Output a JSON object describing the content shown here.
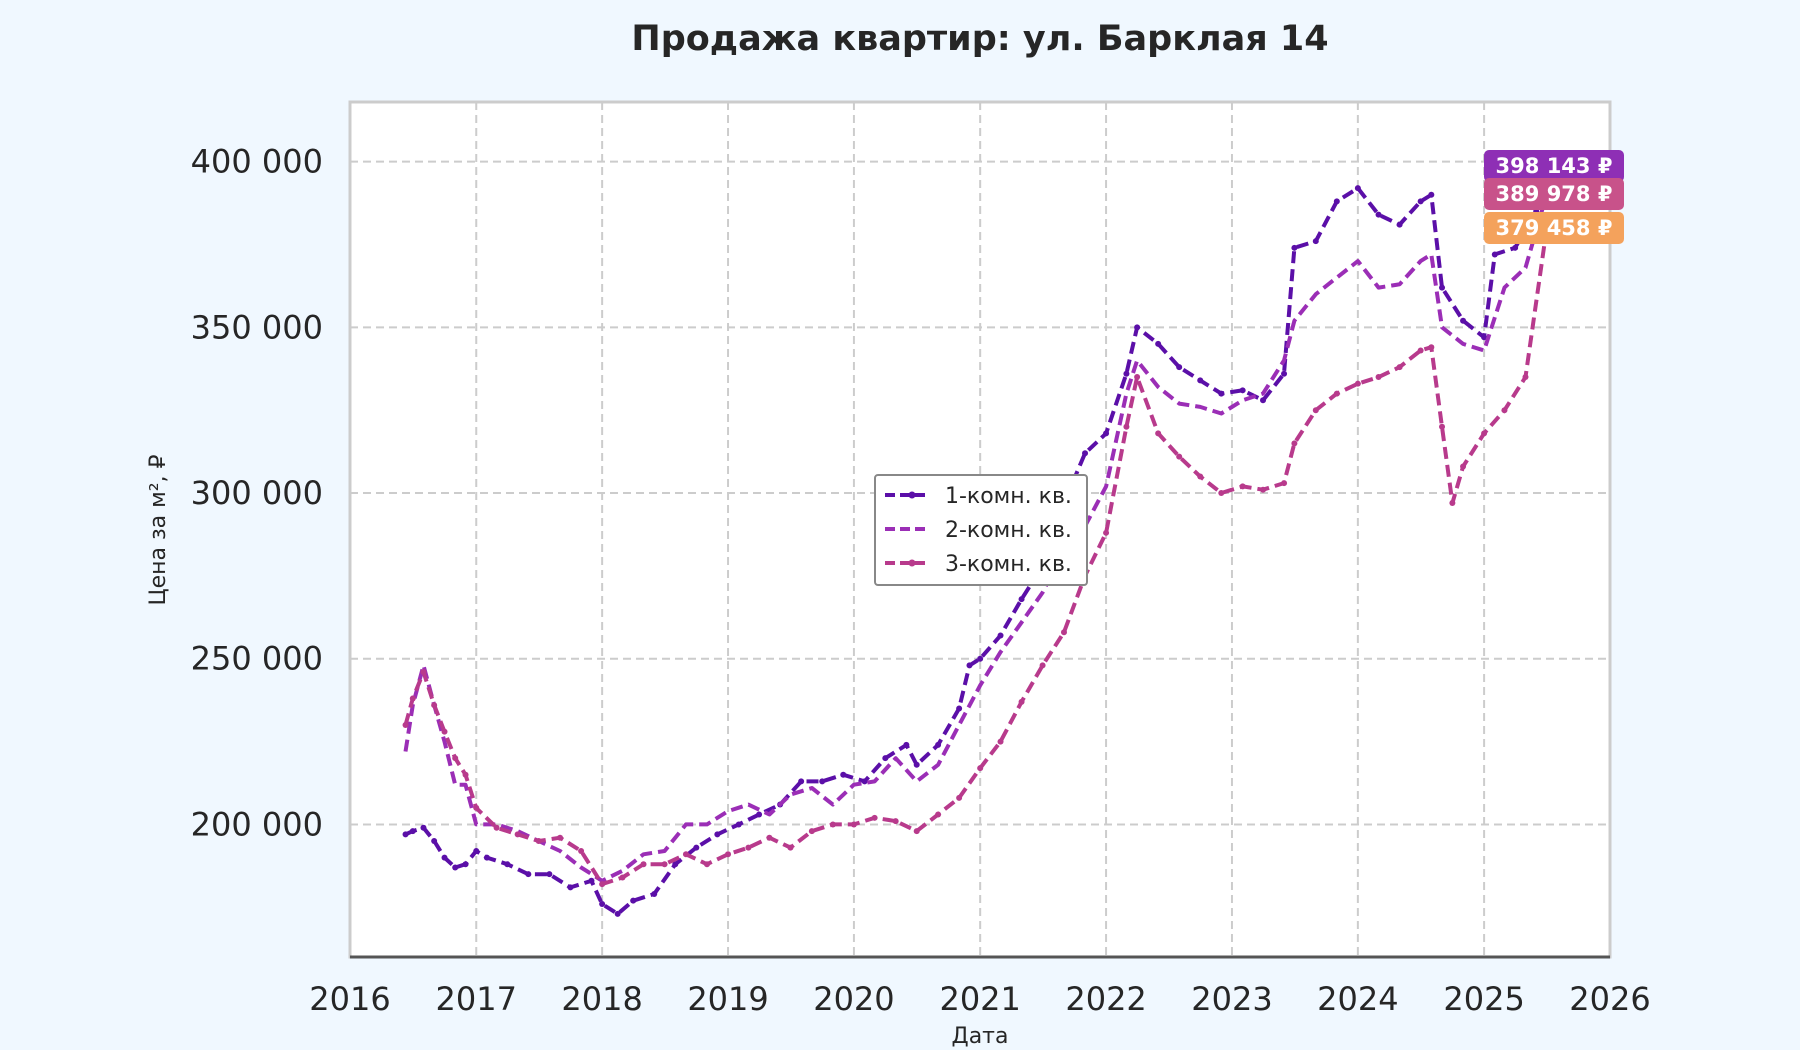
{
  "chart_data": {
    "type": "line",
    "title": "Продажа квартир: ул. Барклая 14",
    "xlabel": "Дата",
    "ylabel": "Цена за м², ₽",
    "x_range": [
      "2016-01-01",
      "2026-01-01"
    ],
    "ylim": [
      160000,
      418000
    ],
    "x_ticks": [
      "2016",
      "2017",
      "2018",
      "2019",
      "2020",
      "2021",
      "2022",
      "2023",
      "2024",
      "2025",
      "2026"
    ],
    "x_tick_dates": [
      "2016-01-01",
      "2017-01-01",
      "2018-01-01",
      "2019-01-01",
      "2020-01-01",
      "2021-01-01",
      "2022-01-01",
      "2023-01-01",
      "2024-01-01",
      "2025-01-01",
      "2026-01-01"
    ],
    "y_ticks": [
      200000,
      250000,
      300000,
      350000,
      400000
    ],
    "y_tick_labels": [
      "200 000",
      "250 000",
      "300 000",
      "350 000",
      "400 000"
    ],
    "grid": true,
    "legend_position": "center",
    "series": [
      {
        "name": "1-комн. кв.",
        "color": "#5b0fa8",
        "style": "dashed-dots",
        "points": [
          [
            "2016-06-10",
            197000
          ],
          [
            "2016-07-01",
            198000
          ],
          [
            "2016-08-01",
            199000
          ],
          [
            "2016-09-01",
            195000
          ],
          [
            "2016-10-01",
            190000
          ],
          [
            "2016-11-01",
            187000
          ],
          [
            "2016-12-01",
            188000
          ],
          [
            "2017-01-01",
            192000
          ],
          [
            "2017-02-01",
            190000
          ],
          [
            "2017-04-01",
            188000
          ],
          [
            "2017-06-01",
            185000
          ],
          [
            "2017-08-01",
            185000
          ],
          [
            "2017-10-01",
            181000
          ],
          [
            "2017-12-01",
            183000
          ],
          [
            "2018-01-01",
            176000
          ],
          [
            "2018-02-15",
            173000
          ],
          [
            "2018-04-01",
            177000
          ],
          [
            "2018-06-01",
            179000
          ],
          [
            "2018-08-01",
            188000
          ],
          [
            "2018-10-01",
            193000
          ],
          [
            "2018-12-01",
            197000
          ],
          [
            "2019-02-01",
            200000
          ],
          [
            "2019-04-01",
            203000
          ],
          [
            "2019-06-01",
            206000
          ],
          [
            "2019-08-01",
            213000
          ],
          [
            "2019-10-01",
            213000
          ],
          [
            "2019-12-01",
            215000
          ],
          [
            "2020-02-01",
            213000
          ],
          [
            "2020-04-01",
            220000
          ],
          [
            "2020-06-01",
            224000
          ],
          [
            "2020-07-01",
            218000
          ],
          [
            "2020-09-01",
            224000
          ],
          [
            "2020-11-01",
            235000
          ],
          [
            "2020-12-01",
            248000
          ],
          [
            "2021-01-01",
            250000
          ],
          [
            "2021-03-01",
            257000
          ],
          [
            "2021-05-01",
            268000
          ],
          [
            "2021-07-01",
            278000
          ],
          [
            "2021-09-01",
            297000
          ],
          [
            "2021-11-01",
            312000
          ],
          [
            "2022-01-01",
            318000
          ],
          [
            "2022-03-01",
            336000
          ],
          [
            "2022-04-01",
            350000
          ],
          [
            "2022-06-01",
            345000
          ],
          [
            "2022-08-01",
            338000
          ],
          [
            "2022-10-01",
            334000
          ],
          [
            "2022-12-01",
            330000
          ],
          [
            "2023-02-01",
            331000
          ],
          [
            "2023-04-01",
            328000
          ],
          [
            "2023-06-01",
            336000
          ],
          [
            "2023-07-01",
            374000
          ],
          [
            "2023-09-01",
            376000
          ],
          [
            "2023-11-01",
            388000
          ],
          [
            "2024-01-01",
            392000
          ],
          [
            "2024-03-01",
            384000
          ],
          [
            "2024-05-01",
            381000
          ],
          [
            "2024-07-01",
            388000
          ],
          [
            "2024-08-01",
            390000
          ],
          [
            "2024-09-01",
            362000
          ],
          [
            "2024-11-01",
            352000
          ],
          [
            "2025-01-01",
            347000
          ],
          [
            "2025-02-01",
            372000
          ],
          [
            "2025-04-01",
            374000
          ],
          [
            "2025-06-01",
            385000
          ],
          [
            "2025-07-01",
            398143
          ]
        ]
      },
      {
        "name": "2-комн. кв.",
        "color": "#9b2eb6",
        "style": "dashed",
        "points": [
          [
            "2016-06-10",
            222000
          ],
          [
            "2016-07-01",
            236000
          ],
          [
            "2016-08-01",
            248000
          ],
          [
            "2016-09-01",
            236000
          ],
          [
            "2016-10-01",
            225000
          ],
          [
            "2016-11-01",
            212000
          ],
          [
            "2016-12-01",
            212000
          ],
          [
            "2017-01-01",
            200000
          ],
          [
            "2017-03-01",
            200000
          ],
          [
            "2017-05-01",
            198000
          ],
          [
            "2017-07-01",
            195000
          ],
          [
            "2017-09-01",
            192000
          ],
          [
            "2017-11-01",
            187000
          ],
          [
            "2018-01-01",
            183000
          ],
          [
            "2018-03-01",
            186000
          ],
          [
            "2018-05-01",
            191000
          ],
          [
            "2018-07-01",
            192000
          ],
          [
            "2018-09-01",
            200000
          ],
          [
            "2018-11-01",
            200000
          ],
          [
            "2019-01-01",
            204000
          ],
          [
            "2019-03-01",
            206000
          ],
          [
            "2019-05-01",
            203000
          ],
          [
            "2019-07-01",
            209000
          ],
          [
            "2019-09-01",
            211000
          ],
          [
            "2019-11-01",
            206000
          ],
          [
            "2020-01-01",
            212000
          ],
          [
            "2020-03-01",
            213000
          ],
          [
            "2020-05-01",
            220000
          ],
          [
            "2020-07-01",
            213000
          ],
          [
            "2020-09-01",
            218000
          ],
          [
            "2020-11-01",
            230000
          ],
          [
            "2021-01-01",
            242000
          ],
          [
            "2021-03-01",
            252000
          ],
          [
            "2021-05-01",
            261000
          ],
          [
            "2021-07-01",
            270000
          ],
          [
            "2021-09-01",
            283000
          ],
          [
            "2021-11-01",
            290000
          ],
          [
            "2022-01-01",
            302000
          ],
          [
            "2022-03-01",
            330000
          ],
          [
            "2022-04-01",
            340000
          ],
          [
            "2022-06-01",
            332000
          ],
          [
            "2022-08-01",
            327000
          ],
          [
            "2022-10-01",
            326000
          ],
          [
            "2022-12-01",
            324000
          ],
          [
            "2023-02-01",
            328000
          ],
          [
            "2023-04-01",
            330000
          ],
          [
            "2023-06-01",
            340000
          ],
          [
            "2023-07-01",
            352000
          ],
          [
            "2023-09-01",
            360000
          ],
          [
            "2023-11-01",
            365000
          ],
          [
            "2024-01-01",
            370000
          ],
          [
            "2024-03-01",
            362000
          ],
          [
            "2024-05-01",
            363000
          ],
          [
            "2024-07-01",
            370000
          ],
          [
            "2024-08-01",
            372000
          ],
          [
            "2024-09-01",
            350000
          ],
          [
            "2024-11-01",
            345000
          ],
          [
            "2025-01-01",
            343000
          ],
          [
            "2025-03-01",
            362000
          ],
          [
            "2025-05-01",
            368000
          ],
          [
            "2025-07-01",
            389978
          ]
        ]
      },
      {
        "name": "3-комн. кв.",
        "color": "#b83a8c",
        "style": "dashed-dots",
        "points": [
          [
            "2016-06-10",
            230000
          ],
          [
            "2016-07-01",
            238000
          ],
          [
            "2016-08-01",
            246000
          ],
          [
            "2016-09-01",
            236000
          ],
          [
            "2016-10-01",
            228000
          ],
          [
            "2016-11-01",
            220000
          ],
          [
            "2016-12-01",
            215000
          ],
          [
            "2017-01-01",
            205000
          ],
          [
            "2017-03-01",
            199000
          ],
          [
            "2017-05-01",
            197000
          ],
          [
            "2017-07-01",
            195000
          ],
          [
            "2017-09-01",
            196000
          ],
          [
            "2017-11-01",
            192000
          ],
          [
            "2018-01-01",
            182000
          ],
          [
            "2018-03-01",
            184000
          ],
          [
            "2018-05-01",
            188000
          ],
          [
            "2018-07-01",
            188000
          ],
          [
            "2018-09-01",
            191000
          ],
          [
            "2018-11-01",
            188000
          ],
          [
            "2019-01-01",
            191000
          ],
          [
            "2019-03-01",
            193000
          ],
          [
            "2019-05-01",
            196000
          ],
          [
            "2019-07-01",
            193000
          ],
          [
            "2019-09-01",
            198000
          ],
          [
            "2019-11-01",
            200000
          ],
          [
            "2020-01-01",
            200000
          ],
          [
            "2020-03-01",
            202000
          ],
          [
            "2020-05-01",
            201000
          ],
          [
            "2020-07-01",
            198000
          ],
          [
            "2020-09-01",
            203000
          ],
          [
            "2020-11-01",
            208000
          ],
          [
            "2021-01-01",
            217000
          ],
          [
            "2021-03-01",
            225000
          ],
          [
            "2021-05-01",
            237000
          ],
          [
            "2021-07-01",
            248000
          ],
          [
            "2021-09-01",
            258000
          ],
          [
            "2021-11-01",
            275000
          ],
          [
            "2022-01-01",
            288000
          ],
          [
            "2022-03-01",
            320000
          ],
          [
            "2022-04-01",
            335000
          ],
          [
            "2022-06-01",
            318000
          ],
          [
            "2022-08-01",
            311000
          ],
          [
            "2022-10-01",
            305000
          ],
          [
            "2022-12-01",
            300000
          ],
          [
            "2023-02-01",
            302000
          ],
          [
            "2023-04-01",
            301000
          ],
          [
            "2023-06-01",
            303000
          ],
          [
            "2023-07-01",
            315000
          ],
          [
            "2023-09-01",
            325000
          ],
          [
            "2023-11-01",
            330000
          ],
          [
            "2024-01-01",
            333000
          ],
          [
            "2024-03-01",
            335000
          ],
          [
            "2024-05-01",
            338000
          ],
          [
            "2024-07-01",
            343000
          ],
          [
            "2024-08-01",
            344000
          ],
          [
            "2024-09-01",
            320000
          ],
          [
            "2024-10-01",
            297000
          ],
          [
            "2024-11-01",
            308000
          ],
          [
            "2025-01-01",
            318000
          ],
          [
            "2025-03-01",
            325000
          ],
          [
            "2025-05-01",
            335000
          ],
          [
            "2025-07-01",
            379458
          ]
        ]
      }
    ],
    "end_labels": [
      {
        "text": "398 143 ₽",
        "value": 398143,
        "color": "#8e2fb5"
      },
      {
        "text": "389 978 ₽",
        "value": 389978,
        "color": "#c8528a"
      },
      {
        "text": "379 458 ₽",
        "value": 379458,
        "color": "#f4a25c"
      }
    ]
  }
}
